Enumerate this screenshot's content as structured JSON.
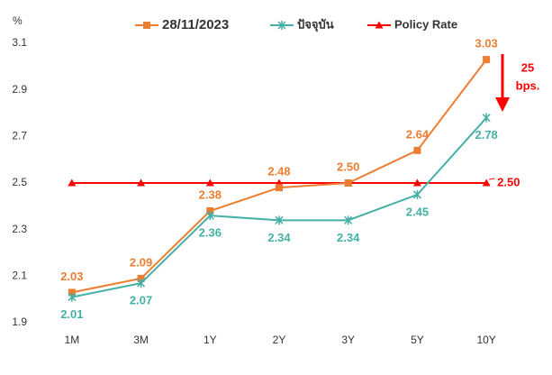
{
  "chart_data": {
    "type": "line",
    "y_axis_label": "%",
    "categories": [
      "1M",
      "3M",
      "1Y",
      "2Y",
      "3Y",
      "5Y",
      "10Y"
    ],
    "series": [
      {
        "name": "28/11/2023",
        "color": "#ED7D31",
        "marker": "square",
        "label_side": "above",
        "values": [
          2.03,
          2.09,
          2.38,
          2.48,
          2.5,
          2.64,
          3.03
        ],
        "value_labels": [
          "2.03",
          "2.09",
          "2.38",
          "2.48",
          "2.50",
          "2.64",
          "3.03"
        ]
      },
      {
        "name": "ปัจจุบัน",
        "color": "#45B0A5",
        "marker": "star",
        "label_side": "below",
        "values": [
          2.01,
          2.07,
          2.36,
          2.34,
          2.34,
          2.45,
          2.78
        ],
        "value_labels": [
          "2.01",
          "2.07",
          "2.36",
          "2.34",
          "2.34",
          "2.45",
          "2.78"
        ]
      },
      {
        "name": "Policy Rate",
        "color": "#FF0000",
        "marker": "triangle",
        "label_side": "right",
        "values": [
          2.5,
          2.5,
          2.5,
          2.5,
          2.5,
          2.5,
          2.5
        ],
        "value_labels": [
          null,
          null,
          null,
          null,
          null,
          null,
          "2.50"
        ]
      }
    ],
    "ylim": [
      1.9,
      3.1
    ],
    "yticks": [
      1.9,
      2.1,
      2.3,
      2.5,
      2.7,
      2.9,
      3.1
    ],
    "grid": false,
    "legend": "top",
    "annotation": [
      "25",
      "bps."
    ],
    "annotation_color": "#FF0000"
  }
}
